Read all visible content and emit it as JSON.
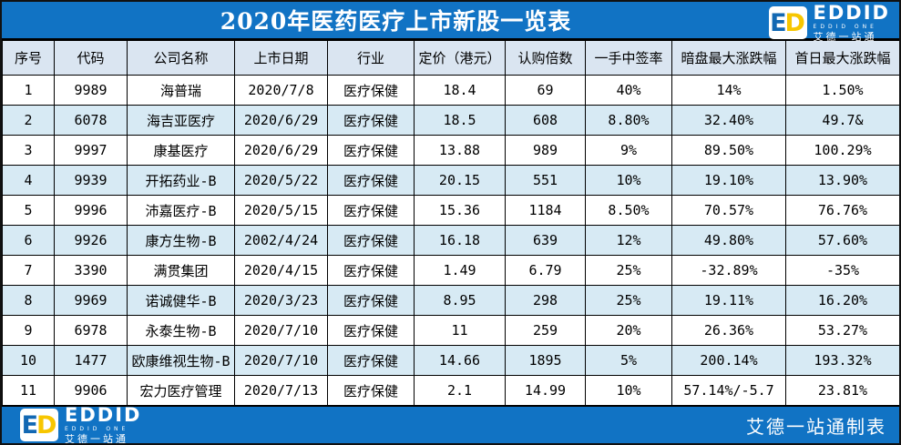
{
  "header": {
    "title": "2020年医药医疗上市新股一览表"
  },
  "brand": {
    "mark_e": "E",
    "mark_d": "D",
    "name": "EDDID",
    "subtitle": "EDDID ONE",
    "subtitle_cn": "艾德一站通"
  },
  "footer": {
    "credit": "艾德一站通制表"
  },
  "table": {
    "columns": [
      "序号",
      "代码",
      "公司名称",
      "上市日期",
      "行业",
      "定价（港元）",
      "认购倍数",
      "一手中签率",
      "暗盘最大涨跌幅",
      "首日最大涨跌幅"
    ],
    "rows": [
      [
        "1",
        "9989",
        "海普瑞",
        "2020/7/8",
        "医疗保健",
        "18.4",
        "69",
        "40%",
        "14%",
        "1.50%"
      ],
      [
        "2",
        "6078",
        "海吉亚医疗",
        "2020/6/29",
        "医疗保健",
        "18.5",
        "608",
        "8.80%",
        "32.40%",
        "49.7&"
      ],
      [
        "3",
        "9997",
        "康基医疗",
        "2020/6/29",
        "医疗保健",
        "13.88",
        "989",
        "9%",
        "89.50%",
        "100.29%"
      ],
      [
        "4",
        "9939",
        "开拓药业-B",
        "2020/5/22",
        "医疗保健",
        "20.15",
        "551",
        "10%",
        "19.10%",
        "13.90%"
      ],
      [
        "5",
        "9996",
        "沛嘉医疗-B",
        "2020/5/15",
        "医疗保健",
        "15.36",
        "1184",
        "8.50%",
        "70.57%",
        "76.76%"
      ],
      [
        "6",
        "9926",
        "康方生物-B",
        "2002/4/24",
        "医疗保健",
        "16.18",
        "639",
        "12%",
        "49.80%",
        "57.60%"
      ],
      [
        "7",
        "3390",
        "满贯集团",
        "2020/4/15",
        "医疗保健",
        "1.49",
        "6.79",
        "25%",
        "-32.89%",
        "-35%"
      ],
      [
        "8",
        "9969",
        "诺诚健华-B",
        "2020/3/23",
        "医疗保健",
        "8.95",
        "298",
        "25%",
        "19.11%",
        "16.20%"
      ],
      [
        "9",
        "6978",
        "永泰生物-B",
        "2020/7/10",
        "医疗保健",
        "11",
        "259",
        "20%",
        "26.36%",
        "53.27%"
      ],
      [
        "10",
        "1477",
        "欧康维视生物-B",
        "2020/7/10",
        "医疗保健",
        "14.66",
        "1895",
        "5%",
        "200.14%",
        "193.32%"
      ],
      [
        "11",
        "9906",
        "宏力医疗管理",
        "2020/7/13",
        "医疗保健",
        "2.1",
        "14.99",
        "10%",
        "57.14%/-5.7",
        "23.81%"
      ]
    ]
  },
  "colors": {
    "bar_blue": "#1173C4",
    "stripe_blue": "#D7EAF4",
    "header_bg": "#DAE5F1",
    "logo_yellow": "#F7C600",
    "logo_blue": "#1268B3",
    "grid_black": "#000000"
  }
}
